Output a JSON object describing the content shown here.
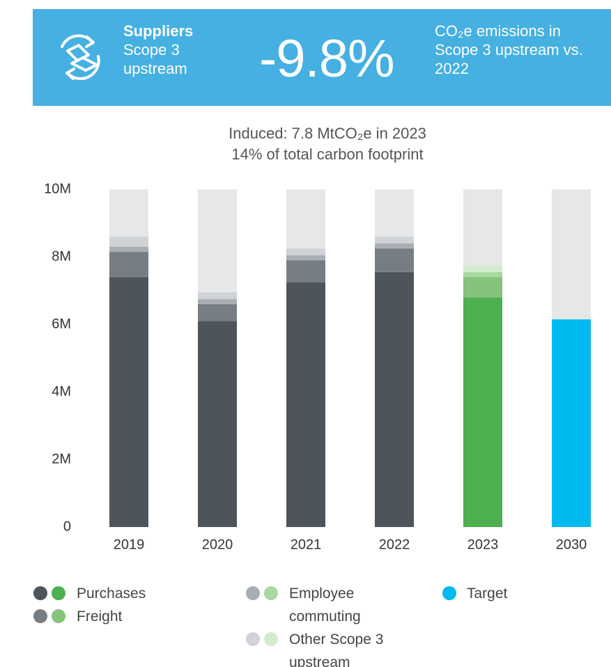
{
  "banner": {
    "heading": "Suppliers",
    "scope": "Scope 3 upstream",
    "figure": "-9.8%",
    "description": "CO₂e emissions in Scope 3 upstream vs. 2022"
  },
  "chart_data": {
    "type": "stacked_bar",
    "title": "Induced: 7.8 MtCO₂e in 2023",
    "subtitle": "14% of total carbon footprint",
    "categories": [
      "2019",
      "2020",
      "2021",
      "2022",
      "2023",
      "2030"
    ],
    "highlight_category": "2023",
    "series": [
      {
        "name": "Purchases",
        "color": "#4d555c",
        "highlight_color": "#4caf50",
        "values": [
          7.4,
          6.1,
          7.25,
          7.55,
          6.8,
          null
        ]
      },
      {
        "name": "Freight",
        "color": "#767e85",
        "highlight_color": "#85c27a",
        "values": [
          0.75,
          0.5,
          0.65,
          0.7,
          0.6,
          null
        ]
      },
      {
        "name": "Employee commuting",
        "color": "#a8aeb3",
        "highlight_color": "#a9d8a0",
        "values": [
          0.15,
          0.15,
          0.15,
          0.15,
          0.15,
          null
        ]
      },
      {
        "name": "Other Scope 3 upstream",
        "color": "#cfd3d7",
        "highlight_color": "#d3ecce",
        "values": [
          0.3,
          0.2,
          0.2,
          0.2,
          0.2,
          null
        ]
      },
      {
        "name": "Target",
        "color": "#00b9ee",
        "values": [
          null,
          null,
          null,
          null,
          null,
          6.15
        ]
      }
    ],
    "ylim": [
      0,
      10
    ],
    "yticks": [
      0,
      {
        "value": 2,
        "label": "2M"
      },
      {
        "value": 4,
        "label": "4M"
      },
      {
        "value": 6,
        "label": "6M"
      },
      {
        "value": 8,
        "label": "8M"
      },
      {
        "value": 10,
        "label": "10M"
      }
    ]
  }
}
